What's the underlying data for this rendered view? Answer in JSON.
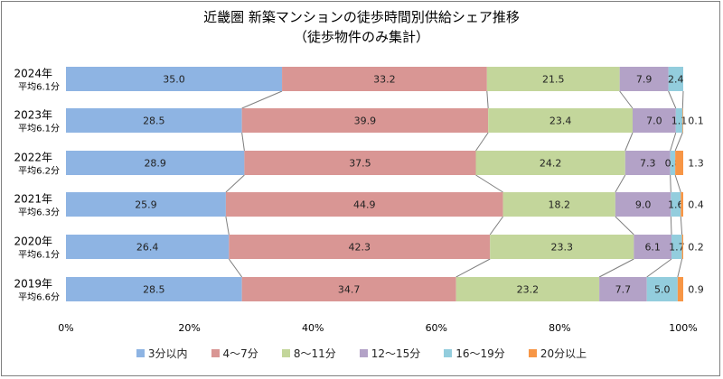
{
  "title": "近畿圏 新築マンションの徒歩時間別供給シェア推移",
  "subtitle": "（徒歩物件のみ集計）",
  "chart_data": {
    "type": "bar",
    "orientation": "horizontal-stacked-100",
    "title": "近畿圏 新築マンションの徒歩時間別供給シェア推移",
    "subtitle": "（徒歩物件のみ集計）",
    "categories": [
      {
        "year": "2024年",
        "avg": "平均6.1分"
      },
      {
        "year": "2023年",
        "avg": "平均6.1分"
      },
      {
        "year": "2022年",
        "avg": "平均6.2分"
      },
      {
        "year": "2021年",
        "avg": "平均6.3分"
      },
      {
        "year": "2020年",
        "avg": "平均6.1分"
      },
      {
        "year": "2019年",
        "avg": "平均6.6分"
      }
    ],
    "series": [
      {
        "name": "3分以内",
        "color": "#8eb4e3",
        "values": [
          35.0,
          28.5,
          28.9,
          25.9,
          26.4,
          28.5
        ]
      },
      {
        "name": "4～7分",
        "color": "#d99694",
        "values": [
          33.2,
          39.9,
          37.5,
          44.9,
          42.3,
          34.7
        ]
      },
      {
        "name": "8～11分",
        "color": "#c3d69b",
        "values": [
          21.5,
          23.4,
          24.2,
          18.2,
          23.3,
          23.2
        ]
      },
      {
        "name": "12～15分",
        "color": "#b3a2c7",
        "values": [
          7.9,
          7.0,
          7.3,
          9.0,
          6.1,
          7.7
        ]
      },
      {
        "name": "16～19分",
        "color": "#93cddd",
        "values": [
          2.4,
          1.1,
          0.8,
          1.6,
          1.7,
          5.0
        ]
      },
      {
        "name": "20分以上",
        "color": "#f79646",
        "values": [
          0,
          0.1,
          1.3,
          0.4,
          0.2,
          0.9
        ]
      }
    ],
    "xlim": [
      0,
      100
    ],
    "xticks": [
      "0%",
      "20%",
      "40%",
      "60%",
      "80%",
      "100%"
    ],
    "legend_position": "bottom",
    "connector_lines": true,
    "grid": false
  }
}
